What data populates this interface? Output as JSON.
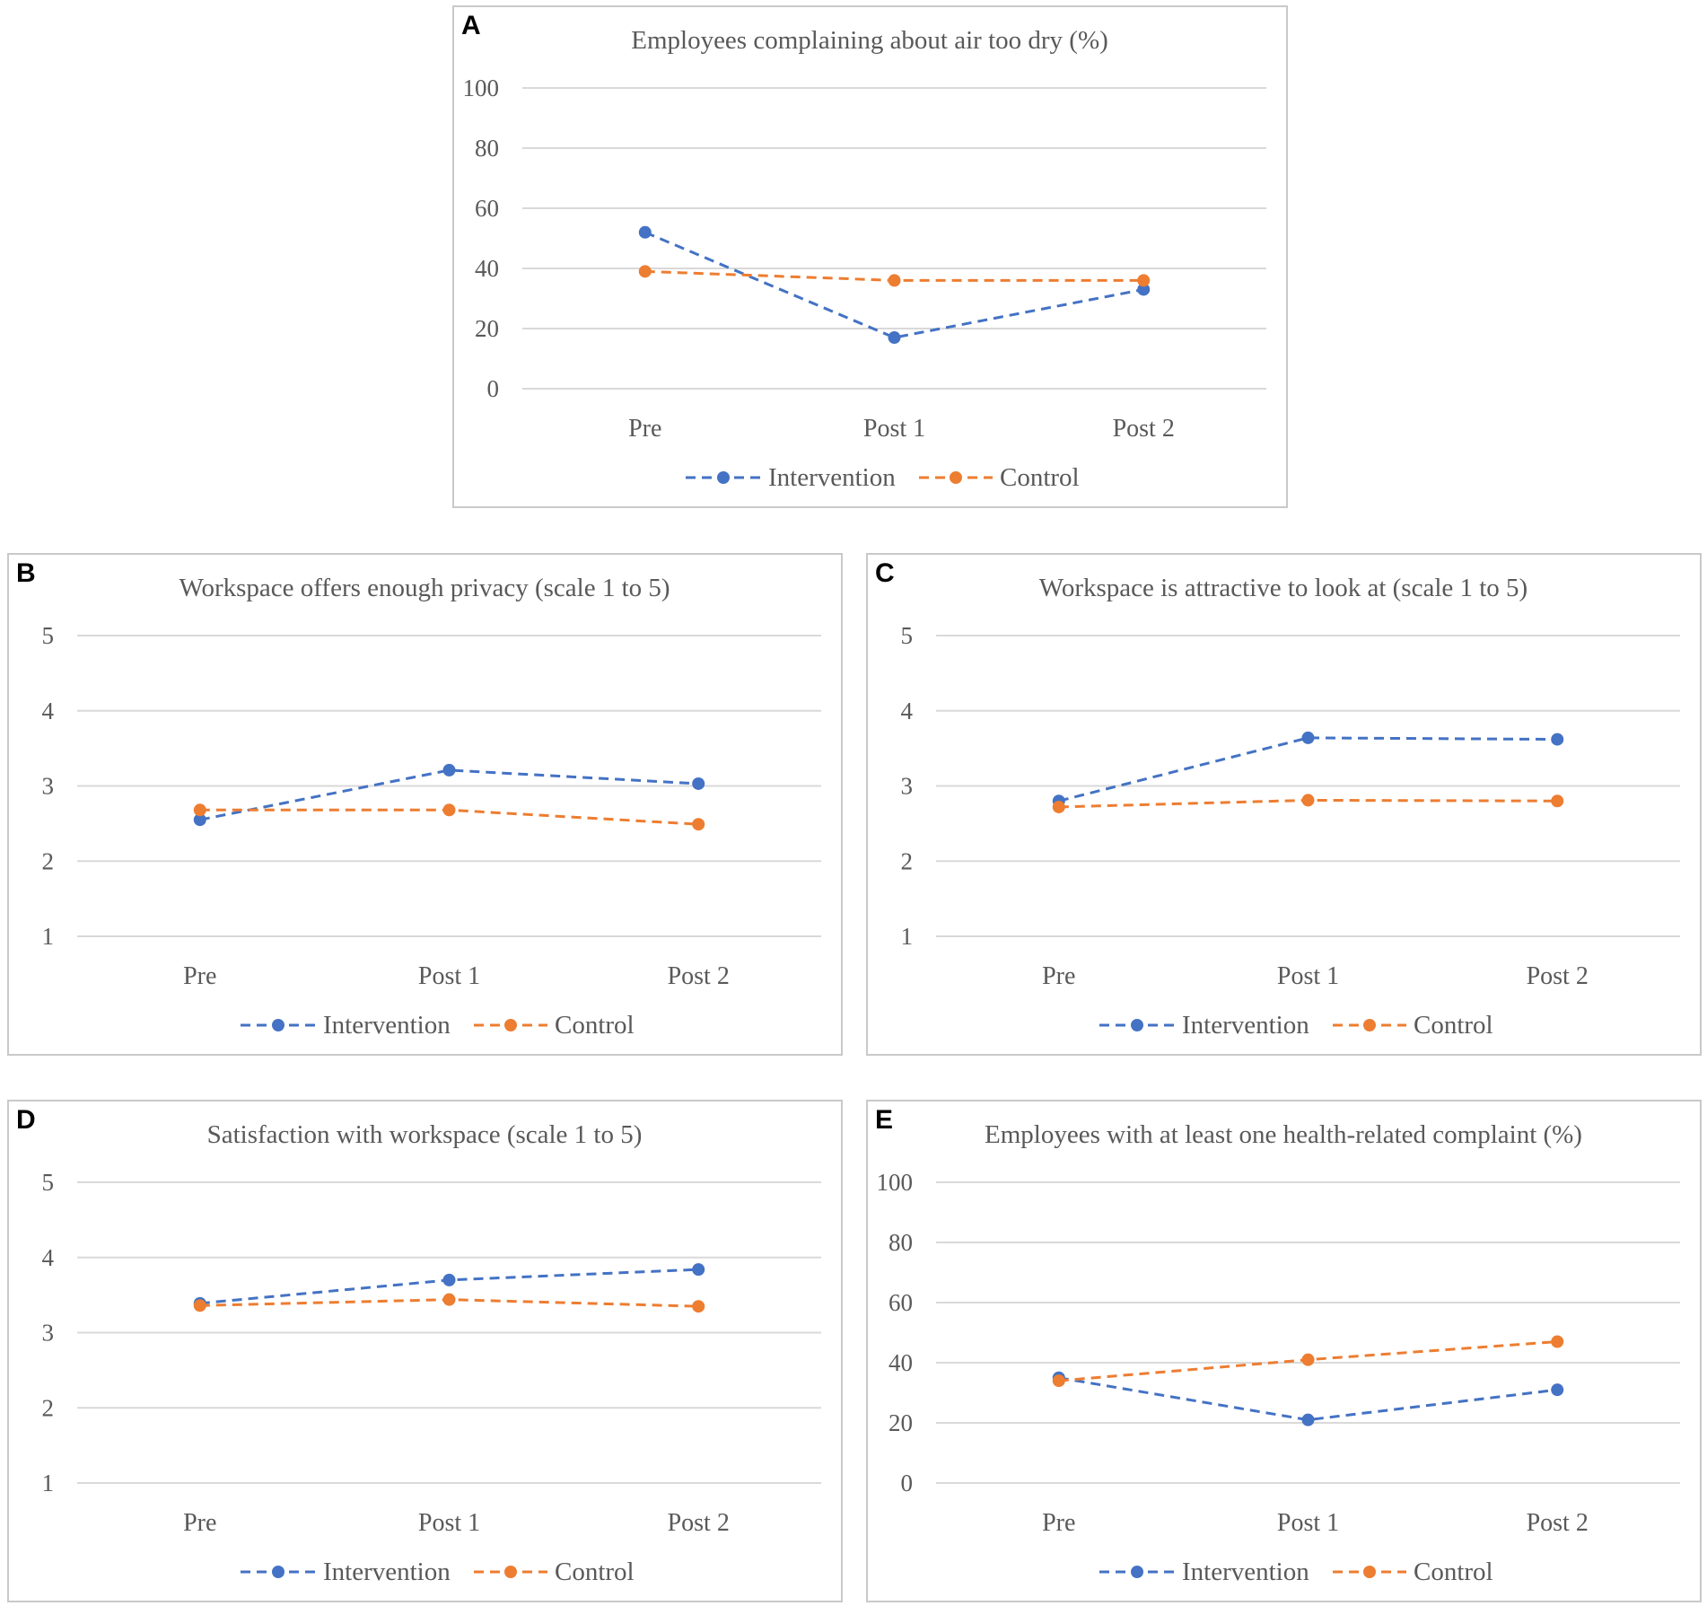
{
  "colors": {
    "intervention": "#4472c4",
    "control": "#ed7d31"
  },
  "chart_data": [
    {
      "panel": "A",
      "type": "line",
      "title": "Employees complaining about air too dry (%)",
      "categories": [
        "Pre",
        "Post 1",
        "Post 2"
      ],
      "ylim": [
        0,
        100
      ],
      "yticks": [
        0,
        20,
        40,
        60,
        80,
        100
      ],
      "grid": true,
      "legend": "bottom",
      "series": [
        {
          "name": "Intervention",
          "values": [
            52,
            17,
            33
          ]
        },
        {
          "name": "Control",
          "values": [
            39,
            36,
            36
          ]
        }
      ]
    },
    {
      "panel": "B",
      "type": "line",
      "title": "Workspace offers enough privacy (scale 1 to 5)",
      "categories": [
        "Pre",
        "Post 1",
        "Post 2"
      ],
      "ylim": [
        1,
        5
      ],
      "yticks": [
        1,
        2,
        3,
        4,
        5
      ],
      "grid": true,
      "legend": "bottom",
      "series": [
        {
          "name": "Intervention",
          "values": [
            2.55,
            3.21,
            3.03
          ]
        },
        {
          "name": "Control",
          "values": [
            2.68,
            2.68,
            2.49
          ]
        }
      ]
    },
    {
      "panel": "C",
      "type": "line",
      "title": "Workspace is attractive to look at (scale 1 to 5)",
      "categories": [
        "Pre",
        "Post 1",
        "Post 2"
      ],
      "ylim": [
        1,
        5
      ],
      "yticks": [
        1,
        2,
        3,
        4,
        5
      ],
      "grid": true,
      "legend": "bottom",
      "series": [
        {
          "name": "Intervention",
          "values": [
            2.8,
            3.64,
            3.62
          ]
        },
        {
          "name": "Control",
          "values": [
            2.72,
            2.81,
            2.8
          ]
        }
      ]
    },
    {
      "panel": "D",
      "type": "line",
      "title": "Satisfaction with workspace (scale 1 to 5)",
      "categories": [
        "Pre",
        "Post 1",
        "Post 2"
      ],
      "ylim": [
        1,
        5
      ],
      "yticks": [
        1,
        2,
        3,
        4,
        5
      ],
      "grid": true,
      "legend": "bottom",
      "series": [
        {
          "name": "Intervention",
          "values": [
            3.39,
            3.7,
            3.84
          ]
        },
        {
          "name": "Control",
          "values": [
            3.36,
            3.44,
            3.35
          ]
        }
      ]
    },
    {
      "panel": "E",
      "type": "line",
      "title": "Employees with at least one health-related complaint (%)",
      "categories": [
        "Pre",
        "Post 1",
        "Post 2"
      ],
      "ylim": [
        0,
        100
      ],
      "yticks": [
        0,
        20,
        40,
        60,
        80,
        100
      ],
      "grid": true,
      "legend": "bottom",
      "series": [
        {
          "name": "Intervention",
          "values": [
            35,
            21,
            31
          ]
        },
        {
          "name": "Control",
          "values": [
            34,
            41,
            47
          ]
        }
      ]
    }
  ]
}
